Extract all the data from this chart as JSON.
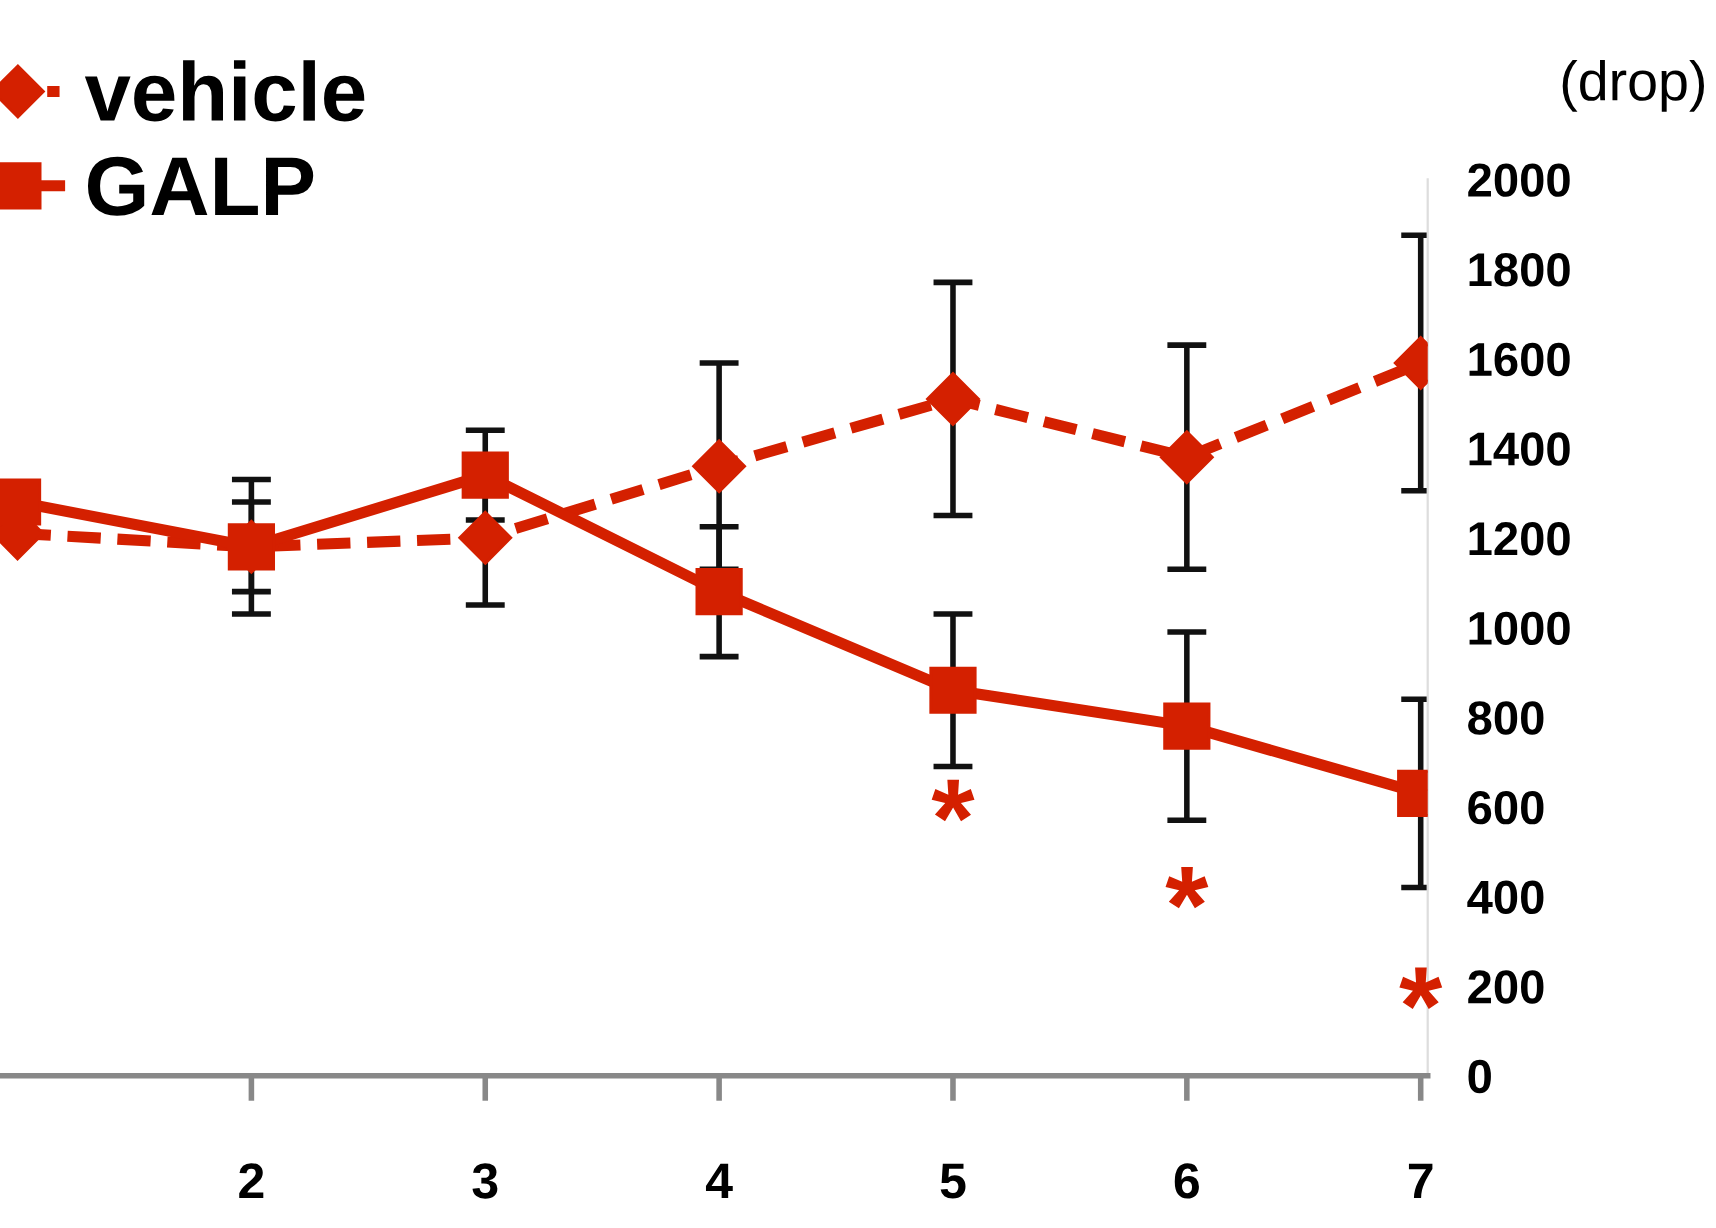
{
  "chart_data": {
    "type": "line",
    "ylabel": "(drop)",
    "x": [
      1,
      2,
      3,
      4,
      5,
      6,
      7
    ],
    "series": [
      {
        "name": "vehicle",
        "color": "#d42000",
        "marker": "diamond",
        "line_style": "dashed",
        "values": [
          1210,
          1180,
          1200,
          1360,
          1510,
          1380,
          1590
        ],
        "errors": [
          null,
          150,
          150,
          230,
          260,
          250,
          285
        ]
      },
      {
        "name": "GALP",
        "color": "#d42000",
        "marker": "square",
        "line_style": "solid",
        "values": [
          1280,
          1180,
          1340,
          1080,
          860,
          780,
          630
        ],
        "errors": [
          null,
          100,
          100,
          145,
          170,
          210,
          210
        ]
      }
    ],
    "xlim": [
      0.925,
      7.03
    ],
    "xticks": [
      2,
      3,
      4,
      5,
      6,
      7
    ],
    "ylim": [
      0,
      2000
    ],
    "yticks": [
      0,
      200,
      400,
      600,
      800,
      1000,
      1200,
      1400,
      1600,
      1800,
      2000
    ],
    "annotations": [
      "*",
      "*",
      "*"
    ],
    "legend": "top left",
    "grid": false
  }
}
